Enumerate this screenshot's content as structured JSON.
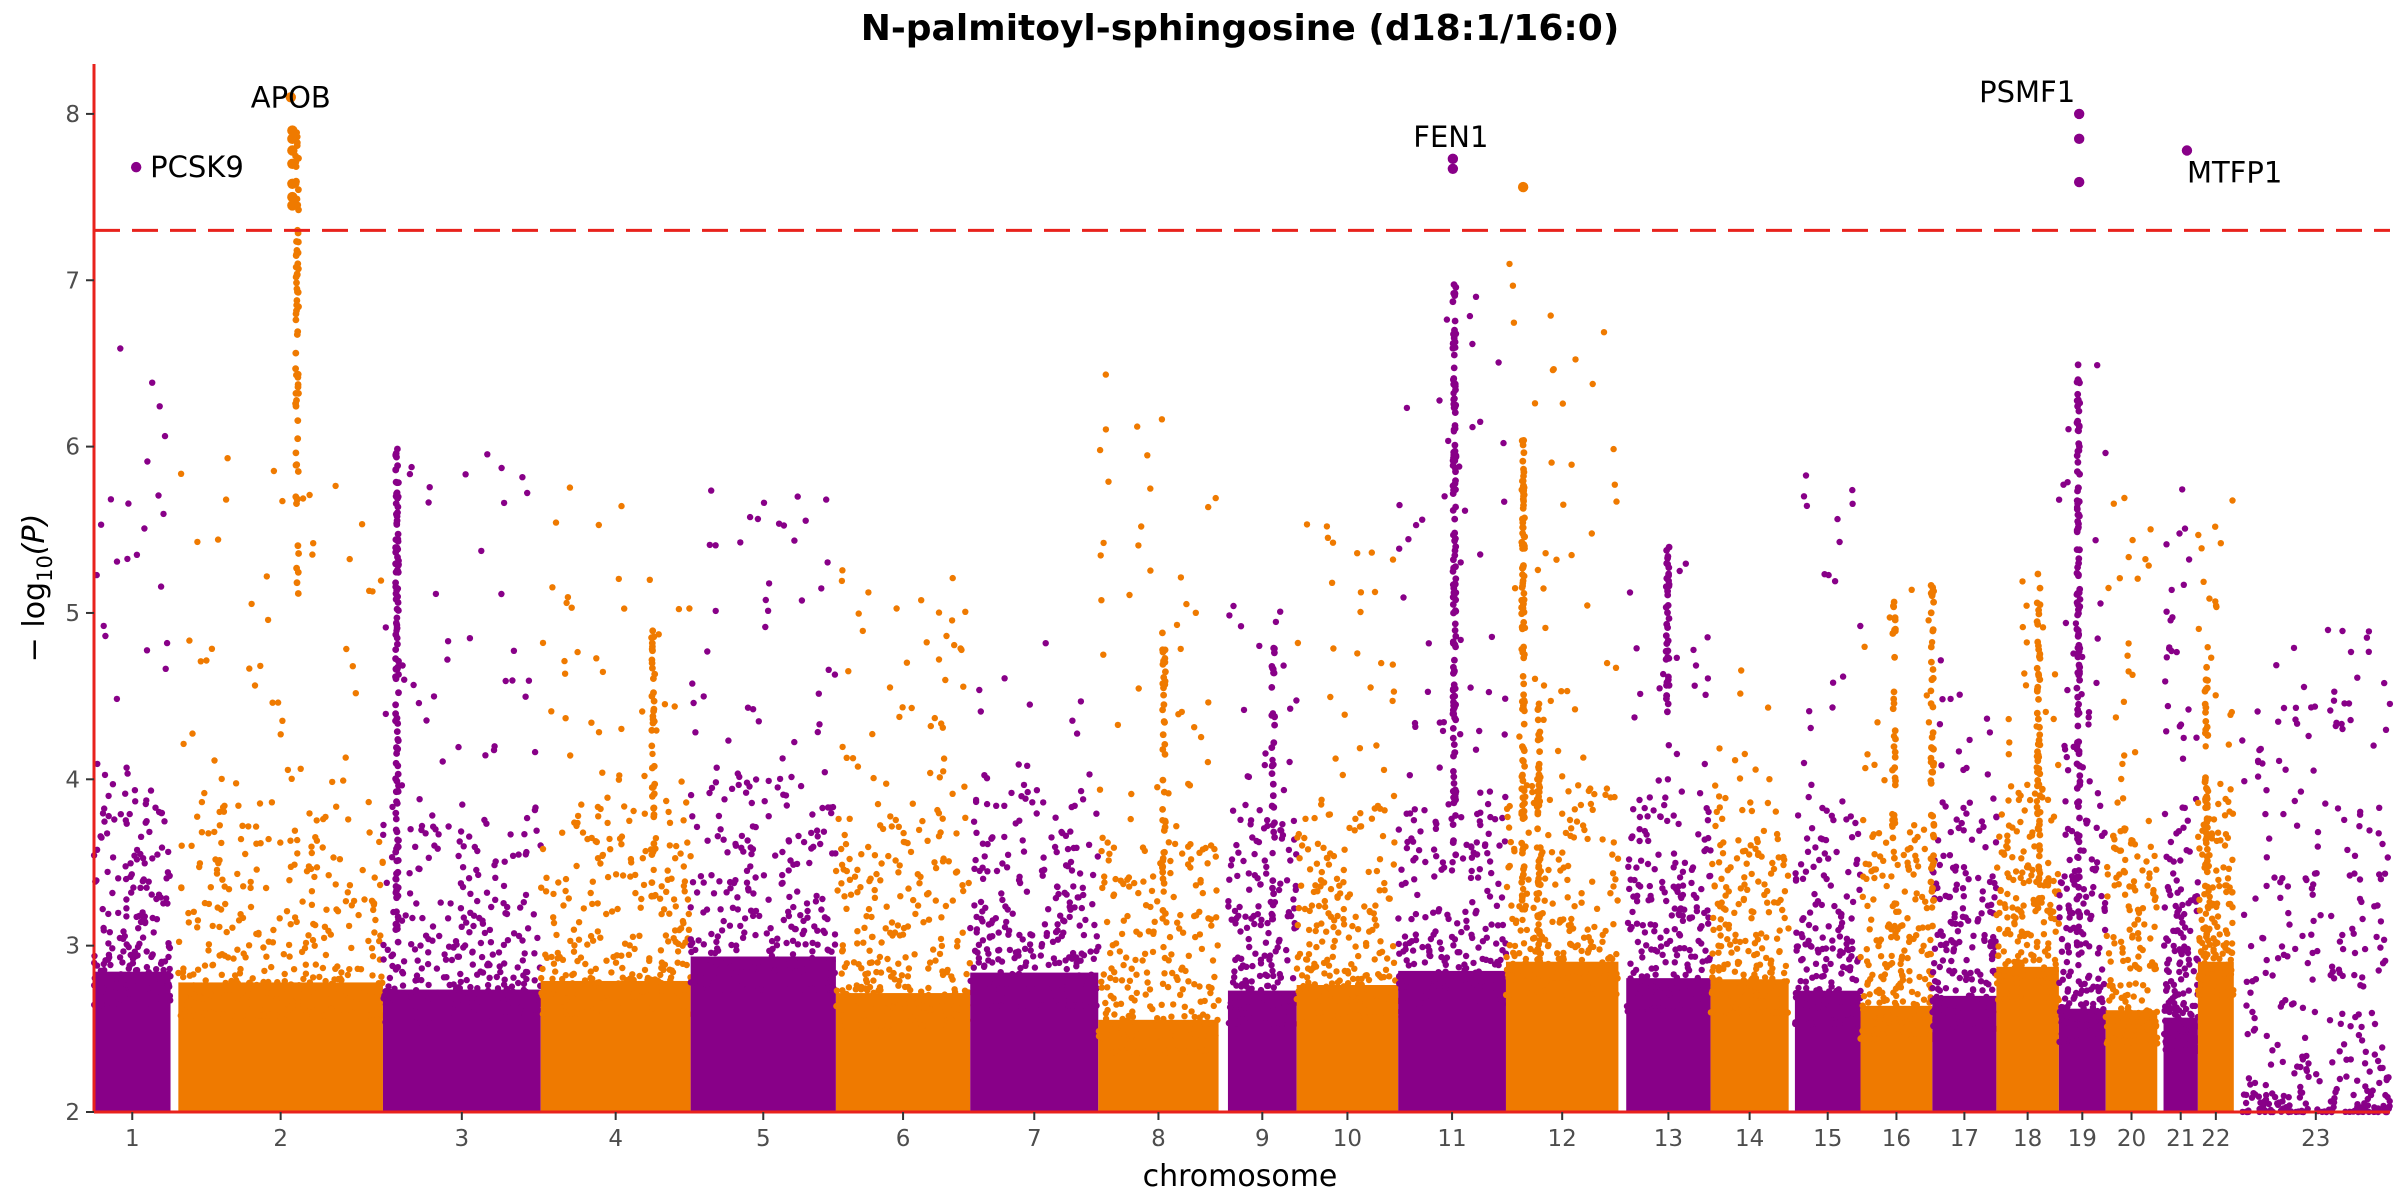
{
  "chart_data": {
    "type": "scatter",
    "title": "N-palmitoyl-sphingosine (d18:1/16:0)",
    "xlabel": "chromosome",
    "ylabel_main": "− log",
    "ylabel_sub": "10",
    "ylabel_arg": "(P)",
    "ylim": [
      2,
      8.3
    ],
    "y_ticks": [
      2,
      3,
      4,
      5,
      6,
      7,
      8
    ],
    "significance_threshold": 7.3,
    "threshold_color": "#e8221c",
    "colors": {
      "odd": "#880088",
      "even": "#ef7a00",
      "axis": "#e8221c"
    },
    "chromosomes": [
      {
        "label": "1",
        "start": 0,
        "end": 98,
        "peak": 6.6
      },
      {
        "label": "2",
        "start": 108,
        "end": 370,
        "peak": 6.0
      },
      {
        "label": "3",
        "start": 370,
        "end": 572,
        "peak": 6.0
      },
      {
        "label": "4",
        "start": 572,
        "end": 764,
        "peak": 5.9
      },
      {
        "label": "5",
        "start": 764,
        "end": 950,
        "peak": 5.75
      },
      {
        "label": "6",
        "start": 950,
        "end": 1122,
        "peak": 5.35
      },
      {
        "label": "7",
        "start": 1122,
        "end": 1286,
        "peak": 4.9
      },
      {
        "label": "8",
        "start": 1286,
        "end": 1440,
        "peak": 6.6
      },
      {
        "label": "9",
        "start": 1452,
        "end": 1540,
        "peak": 5.1
      },
      {
        "label": "10",
        "start": 1540,
        "end": 1670,
        "peak": 5.55
      },
      {
        "label": "11",
        "start": 1670,
        "end": 1808,
        "peak": 7.0
      },
      {
        "label": "12",
        "start": 1808,
        "end": 1952,
        "peak": 7.1
      },
      {
        "label": "13",
        "start": 1962,
        "end": 2070,
        "peak": 5.4
      },
      {
        "label": "14",
        "start": 2070,
        "end": 2170,
        "peak": 4.75
      },
      {
        "label": "15",
        "start": 2178,
        "end": 2262,
        "peak": 6.1
      },
      {
        "label": "16",
        "start": 2262,
        "end": 2354,
        "peak": 5.2
      },
      {
        "label": "17",
        "start": 2354,
        "end": 2436,
        "peak": 4.8
      },
      {
        "label": "18",
        "start": 2436,
        "end": 2516,
        "peak": 5.25
      },
      {
        "label": "19",
        "start": 2516,
        "end": 2576,
        "peak": 6.7
      },
      {
        "label": "20",
        "start": 2576,
        "end": 2642,
        "peak": 5.7
      },
      {
        "label": "21",
        "start": 2650,
        "end": 2694,
        "peak": 5.75
      },
      {
        "label": "22",
        "start": 2694,
        "end": 2740,
        "peak": 5.8
      },
      {
        "label": "23",
        "start": 2750,
        "end": 2940,
        "peak": 4.9
      }
    ],
    "xlim": [
      0,
      2940
    ],
    "peak_columns": [
      {
        "x": 260,
        "from": 5.0,
        "to": 7.9,
        "count": 70
      },
      {
        "x": 388,
        "from": 3.0,
        "to": 6.0,
        "count": 120
      },
      {
        "x": 1742,
        "from": 3.5,
        "to": 6.98,
        "count": 130
      },
      {
        "x": 1830,
        "from": 3.2,
        "to": 6.05,
        "count": 110
      },
      {
        "x": 1850,
        "from": 2.6,
        "to": 4.5,
        "count": 60
      },
      {
        "x": 2015,
        "from": 4.4,
        "to": 5.4,
        "count": 40
      },
      {
        "x": 2541,
        "from": 3.0,
        "to": 6.5,
        "count": 120
      },
      {
        "x": 2490,
        "from": 3.0,
        "to": 5.25,
        "count": 60
      },
      {
        "x": 2354,
        "from": 3.0,
        "to": 5.2,
        "count": 50
      },
      {
        "x": 2305,
        "from": 3.5,
        "to": 5.1,
        "count": 30
      },
      {
        "x": 716,
        "from": 3.2,
        "to": 4.9,
        "count": 40
      },
      {
        "x": 2705,
        "from": 3.0,
        "to": 4.7,
        "count": 45
      },
      {
        "x": 1370,
        "from": 3.0,
        "to": 4.9,
        "count": 40
      },
      {
        "x": 1510,
        "from": 3.0,
        "to": 4.95,
        "count": 30
      }
    ],
    "highlight_points": [
      {
        "x": 54,
        "y": 7.68
      },
      {
        "x": 254,
        "y": 7.45
      },
      {
        "x": 254,
        "y": 7.5
      },
      {
        "x": 254,
        "y": 7.58
      },
      {
        "x": 254,
        "y": 7.7
      },
      {
        "x": 254,
        "y": 7.78
      },
      {
        "x": 254,
        "y": 7.85
      },
      {
        "x": 254,
        "y": 7.9
      },
      {
        "x": 252,
        "y": 8.1
      },
      {
        "x": 1740,
        "y": 7.67
      },
      {
        "x": 1740,
        "y": 7.73
      },
      {
        "x": 1830,
        "y": 7.56
      },
      {
        "x": 2542,
        "y": 7.59
      },
      {
        "x": 2542,
        "y": 7.85
      },
      {
        "x": 2542,
        "y": 8.0
      },
      {
        "x": 2680,
        "y": 7.78
      }
    ],
    "annotations": [
      {
        "gene": "PCSK9",
        "x": 54,
        "y": 7.68,
        "anchor": "start",
        "dx": 14,
        "dy": 10
      },
      {
        "gene": "APOB",
        "x": 252,
        "y": 8.1,
        "anchor": "middle",
        "dx": 0,
        "dy": 10
      },
      {
        "gene": "FEN1",
        "x": 1740,
        "y": 7.73,
        "anchor": "middle",
        "dx": -2,
        "dy": -12
      },
      {
        "gene": "PSMF1",
        "x": 2542,
        "y": 8.0,
        "anchor": "end",
        "dx": -4,
        "dy": -12
      },
      {
        "gene": "MTFP1",
        "x": 2680,
        "y": 7.78,
        "anchor": "start",
        "dx": 0,
        "dy": 32
      }
    ]
  }
}
